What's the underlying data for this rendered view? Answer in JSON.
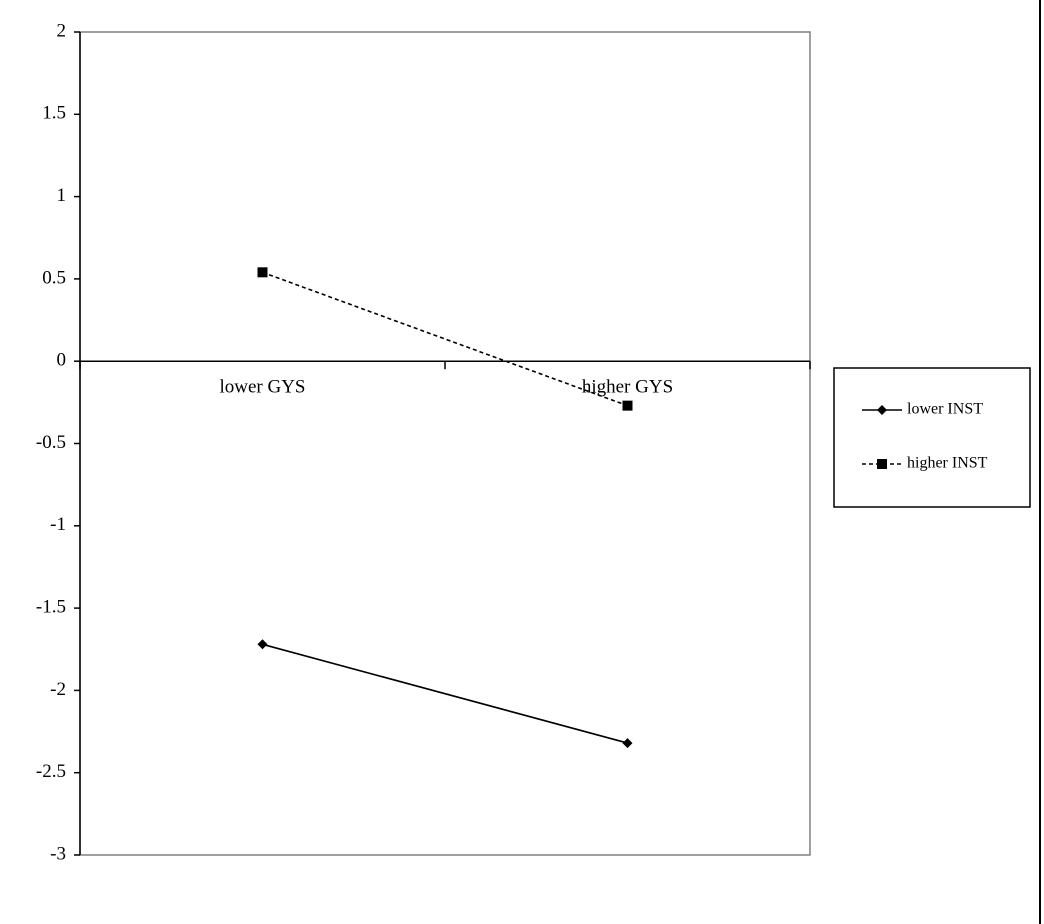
{
  "chart_data": {
    "type": "line",
    "categories": [
      "lower GYS",
      "higher GYS"
    ],
    "series": [
      {
        "name": "lower INST",
        "color": "#000000",
        "marker": "diamond",
        "dashed": false,
        "values": [
          -1.72,
          -2.32
        ]
      },
      {
        "name": "higher INST",
        "color": "#000000",
        "marker": "square",
        "dashed": true,
        "values": [
          0.54,
          -0.27
        ]
      }
    ],
    "ylim": [
      -3,
      2
    ],
    "yticks": [
      -3,
      -2.5,
      -2,
      -1.5,
      -1,
      -0.5,
      0,
      0.5,
      1,
      1.5,
      2
    ]
  }
}
